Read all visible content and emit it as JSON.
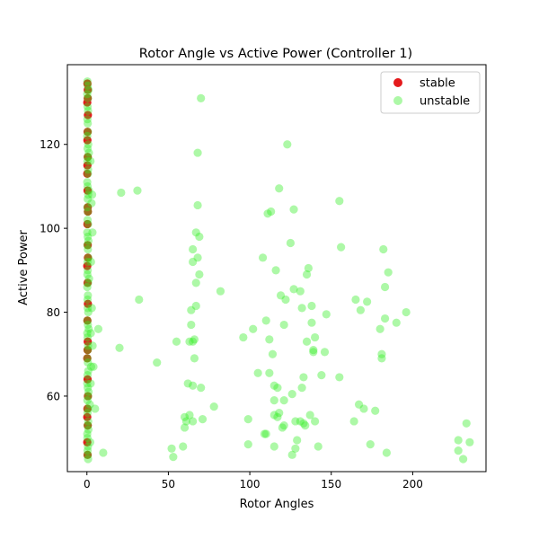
{
  "chart_data": {
    "type": "scatter",
    "title": "Rotor Angle vs Active Power (Controller 1)",
    "xlabel": "Rotor Angles",
    "ylabel": "Active Power",
    "xlim": [
      -12,
      245
    ],
    "ylim": [
      42,
      139
    ],
    "xticks": [
      0,
      50,
      100,
      150,
      200
    ],
    "yticks": [
      60,
      80,
      100,
      120
    ],
    "grid": false,
    "legend_position": "top-right",
    "series": [
      {
        "name": "stable",
        "color": "#e41a1c",
        "alpha": 1.0,
        "points": [
          [
            0.3,
            134.5
          ],
          [
            0.5,
            133
          ],
          [
            0.2,
            130
          ],
          [
            0.6,
            127
          ],
          [
            0.4,
            123
          ],
          [
            0.3,
            121
          ],
          [
            0.5,
            117
          ],
          [
            0.2,
            113
          ],
          [
            0.4,
            109
          ],
          [
            0.6,
            104
          ],
          [
            0.3,
            101
          ],
          [
            0.5,
            96
          ],
          [
            0.2,
            91
          ],
          [
            0.4,
            87
          ],
          [
            0.6,
            82
          ],
          [
            0.3,
            78
          ],
          [
            0.5,
            73
          ],
          [
            0.2,
            69
          ],
          [
            0.4,
            64
          ],
          [
            0.6,
            60
          ],
          [
            0.3,
            57
          ],
          [
            0.5,
            53
          ],
          [
            0.2,
            49
          ],
          [
            0.4,
            46
          ],
          [
            0.5,
            131
          ],
          [
            0.3,
            115
          ],
          [
            0.6,
            93
          ],
          [
            0.4,
            71
          ],
          [
            0.2,
            55
          ],
          [
            0.5,
            105
          ]
        ]
      },
      {
        "name": "unstable",
        "color": "#33ee22",
        "alpha": 0.4,
        "points": [
          [
            0.3,
            135
          ],
          [
            0.5,
            134
          ],
          [
            0.2,
            132
          ],
          [
            0.6,
            131
          ],
          [
            0.4,
            129
          ],
          [
            0.7,
            128
          ],
          [
            0.3,
            126
          ],
          [
            0.5,
            125
          ],
          [
            0.6,
            123
          ],
          [
            0.2,
            122
          ],
          [
            0.8,
            120
          ],
          [
            0.4,
            119
          ],
          [
            0.5,
            117
          ],
          [
            0.3,
            116
          ],
          [
            0.7,
            114
          ],
          [
            0.6,
            113
          ],
          [
            0.2,
            111
          ],
          [
            0.4,
            110
          ],
          [
            0.8,
            108
          ],
          [
            0.5,
            107
          ],
          [
            0.3,
            105
          ],
          [
            0.6,
            104
          ],
          [
            0.4,
            102
          ],
          [
            0.7,
            101
          ],
          [
            0.2,
            99
          ],
          [
            0.5,
            98
          ],
          [
            0.3,
            96
          ],
          [
            0.6,
            95
          ],
          [
            0.8,
            93
          ],
          [
            0.4,
            92
          ],
          [
            0.5,
            90
          ],
          [
            0.3,
            89
          ],
          [
            0.7,
            87
          ],
          [
            0.2,
            86
          ],
          [
            0.6,
            84
          ],
          [
            0.4,
            83
          ],
          [
            0.5,
            81
          ],
          [
            0.8,
            80
          ],
          [
            0.3,
            78
          ],
          [
            0.6,
            77
          ],
          [
            0.2,
            75
          ],
          [
            0.4,
            74
          ],
          [
            0.7,
            72
          ],
          [
            0.5,
            71
          ],
          [
            0.3,
            69
          ],
          [
            0.6,
            68
          ],
          [
            0.8,
            66
          ],
          [
            0.4,
            65
          ],
          [
            0.2,
            63
          ],
          [
            0.5,
            62
          ],
          [
            0.7,
            60
          ],
          [
            0.3,
            59
          ],
          [
            0.6,
            57
          ],
          [
            0.4,
            56
          ],
          [
            0.8,
            54
          ],
          [
            0.5,
            53
          ],
          [
            0.2,
            51
          ],
          [
            0.3,
            50
          ],
          [
            0.6,
            48
          ],
          [
            0.4,
            47
          ],
          [
            0.5,
            46
          ],
          [
            0.7,
            45
          ],
          [
            1.0,
            133
          ],
          [
            1.2,
            118
          ],
          [
            0.9,
            97
          ],
          [
            1.1,
            76
          ],
          [
            1.0,
            61
          ],
          [
            1.3,
            88
          ],
          [
            0.9,
            52
          ],
          [
            1.2,
            109
          ],
          [
            2.2,
            116
          ],
          [
            2.8,
            106
          ],
          [
            2.5,
            92
          ],
          [
            3.2,
            108
          ],
          [
            3,
            81
          ],
          [
            2.4,
            75
          ],
          [
            3.5,
            72
          ],
          [
            2.6,
            67
          ],
          [
            1.8,
            58
          ],
          [
            2.0,
            49
          ],
          [
            2.3,
            63
          ],
          [
            3.4,
            99
          ],
          [
            4,
            67
          ],
          [
            7,
            76
          ],
          [
            5,
            57
          ],
          [
            10,
            46.5
          ],
          [
            20,
            71.5
          ],
          [
            21,
            108.5
          ],
          [
            31,
            109
          ],
          [
            32,
            83
          ],
          [
            43,
            68
          ],
          [
            52,
            47.5
          ],
          [
            53,
            45.5
          ],
          [
            55,
            73
          ],
          [
            59,
            48
          ],
          [
            60,
            52.5
          ],
          [
            60,
            55
          ],
          [
            61,
            54
          ],
          [
            62,
            63
          ],
          [
            63,
            55.5
          ],
          [
            63,
            73
          ],
          [
            64,
            77
          ],
          [
            64,
            80.5
          ],
          [
            65,
            54
          ],
          [
            65,
            62.5
          ],
          [
            65,
            73
          ],
          [
            65,
            92
          ],
          [
            65,
            95
          ],
          [
            66,
            69
          ],
          [
            66,
            73.5
          ],
          [
            67,
            81.5
          ],
          [
            67,
            87
          ],
          [
            67,
            99
          ],
          [
            68,
            93
          ],
          [
            68,
            105.5
          ],
          [
            68,
            118
          ],
          [
            69,
            98
          ],
          [
            69,
            89
          ],
          [
            70,
            131
          ],
          [
            70,
            62
          ],
          [
            71,
            54.5
          ],
          [
            78,
            57.5
          ],
          [
            82,
            85
          ],
          [
            96,
            74
          ],
          [
            99,
            54.5
          ],
          [
            99,
            48.5
          ],
          [
            102,
            76
          ],
          [
            105,
            65.5
          ],
          [
            108,
            93
          ],
          [
            109,
            51
          ],
          [
            110,
            78
          ],
          [
            110,
            51
          ],
          [
            111,
            103.5
          ],
          [
            112,
            65.5
          ],
          [
            112,
            73.5
          ],
          [
            113,
            104
          ],
          [
            114,
            70
          ],
          [
            115,
            62.5
          ],
          [
            115,
            55.5
          ],
          [
            115,
            59
          ],
          [
            115,
            48
          ],
          [
            116,
            90
          ],
          [
            117,
            62
          ],
          [
            117,
            55
          ],
          [
            118,
            109.5
          ],
          [
            118,
            56
          ],
          [
            119,
            84
          ],
          [
            120,
            52.5
          ],
          [
            121,
            77
          ],
          [
            121,
            59
          ],
          [
            121,
            53
          ],
          [
            122,
            83
          ],
          [
            123,
            120
          ],
          [
            125,
            96.5
          ],
          [
            126,
            46
          ],
          [
            126,
            60.5
          ],
          [
            127,
            104.5
          ],
          [
            127,
            85.5
          ],
          [
            128,
            54
          ],
          [
            128,
            47.5
          ],
          [
            129,
            49.5
          ],
          [
            131,
            85
          ],
          [
            131,
            54
          ],
          [
            132,
            81
          ],
          [
            132,
            62
          ],
          [
            133,
            53.5
          ],
          [
            133,
            64.5
          ],
          [
            134,
            53
          ],
          [
            135,
            89
          ],
          [
            135,
            73
          ],
          [
            136,
            90.5
          ],
          [
            137,
            55.5
          ],
          [
            138,
            81.5
          ],
          [
            138,
            77.5
          ],
          [
            139,
            70.5
          ],
          [
            139,
            71
          ],
          [
            140,
            54
          ],
          [
            140,
            74
          ],
          [
            142,
            48
          ],
          [
            144,
            65
          ],
          [
            146,
            70.5
          ],
          [
            147,
            79.5
          ],
          [
            155,
            106.5
          ],
          [
            155,
            64.5
          ],
          [
            156,
            95.5
          ],
          [
            164,
            54
          ],
          [
            165,
            83
          ],
          [
            167,
            58
          ],
          [
            168,
            80.5
          ],
          [
            170,
            57
          ],
          [
            172,
            82.5
          ],
          [
            174,
            48.5
          ],
          [
            177,
            56.5
          ],
          [
            180,
            76
          ],
          [
            181,
            70
          ],
          [
            181,
            69
          ],
          [
            182,
            95
          ],
          [
            183,
            86
          ],
          [
            183,
            78.5
          ],
          [
            184,
            46.5
          ],
          [
            185,
            89.5
          ],
          [
            190,
            77.5
          ],
          [
            196,
            80
          ],
          [
            228,
            49.5
          ],
          [
            228,
            47
          ],
          [
            231,
            45
          ],
          [
            233,
            53.5
          ],
          [
            235,
            49
          ]
        ]
      }
    ]
  }
}
